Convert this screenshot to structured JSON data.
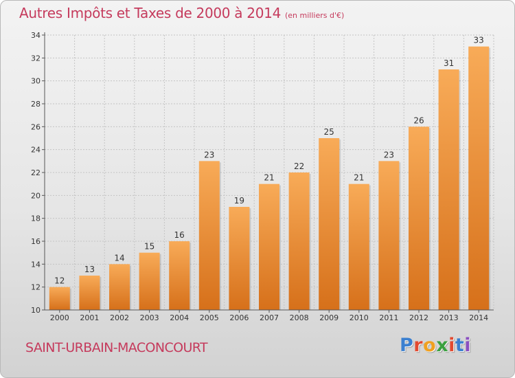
{
  "header": {
    "title": "Autres Impôts et Taxes de 2000 à 2014",
    "unit": "(en milliers d'€)"
  },
  "footer": {
    "city": "SAINT-URBAIN-MACONCOURT",
    "logo": "Proxiti"
  },
  "colors": {
    "title": "#c53a5c",
    "bar_light": "#f7a852",
    "bar_dark": "#d8731c",
    "grid": "#bfbfbf"
  },
  "chart_data": {
    "type": "bar",
    "title": "Autres Impôts et Taxes de 2000 à 2014",
    "subtitle": "(en milliers d'€)",
    "categories": [
      "2000",
      "2001",
      "2002",
      "2003",
      "2004",
      "2005",
      "2006",
      "2007",
      "2008",
      "2009",
      "2010",
      "2011",
      "2012",
      "2013",
      "2014"
    ],
    "values": [
      12,
      13,
      14,
      15,
      16,
      23,
      19,
      21,
      22,
      25,
      21,
      23,
      26,
      31,
      33
    ],
    "ylim": [
      10,
      34
    ],
    "yticks": [
      10,
      12,
      14,
      16,
      18,
      20,
      22,
      24,
      26,
      28,
      30,
      32,
      34
    ],
    "grid": true,
    "data_labels": true
  }
}
